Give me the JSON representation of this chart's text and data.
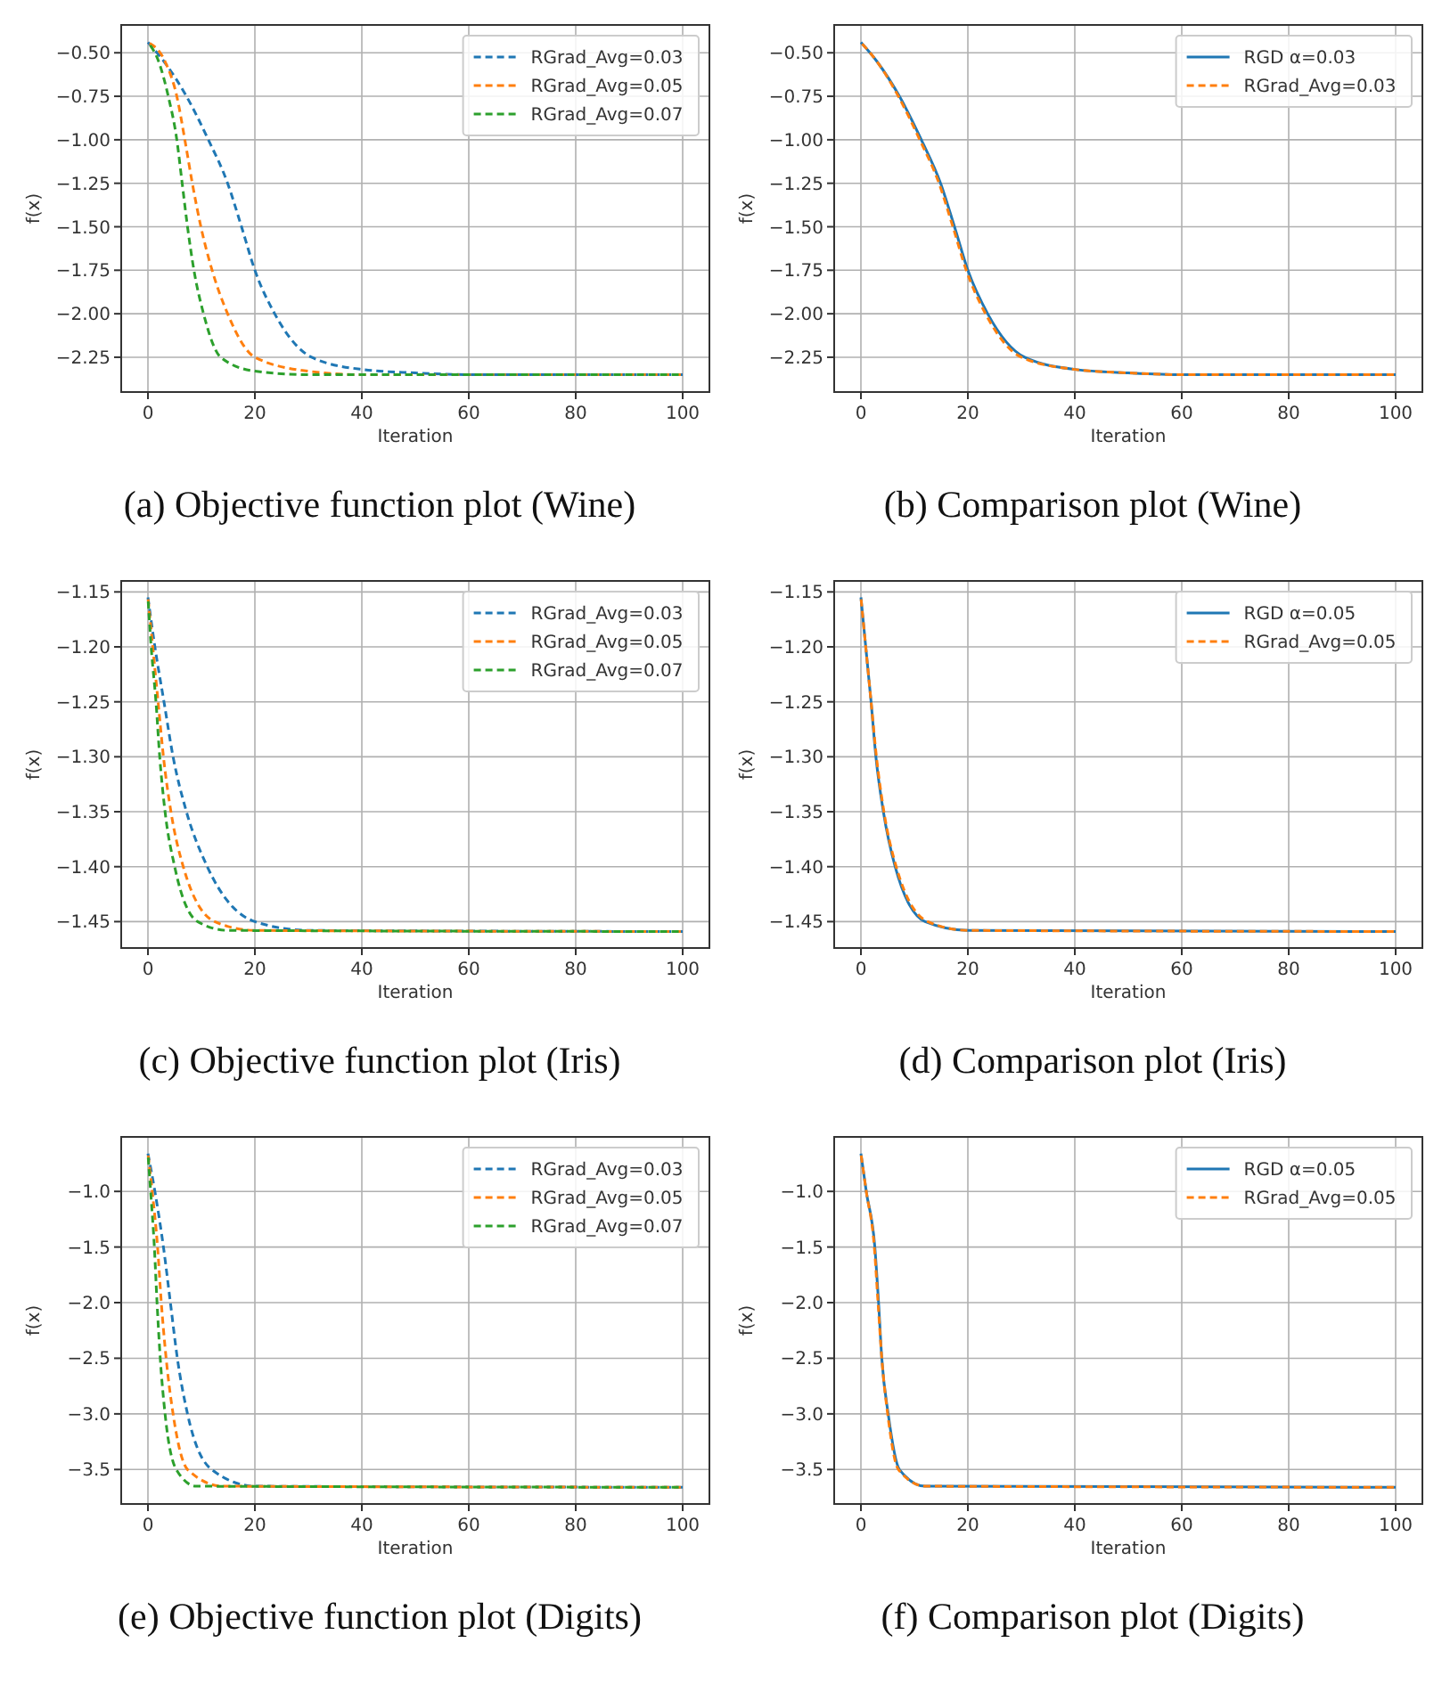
{
  "chart_data": [
    {
      "type": "line",
      "title": "(a) Objective function plot (Wine)",
      "xlabel": "Iteration",
      "ylabel": "f(x)",
      "xlim": [
        -5,
        105
      ],
      "ylim": [
        -2.45,
        -0.34
      ],
      "xticks": [
        0,
        20,
        40,
        60,
        80,
        100
      ],
      "yticks": [
        {
          "value": -0.5,
          "label": "−0.50"
        },
        {
          "value": -0.75,
          "label": "−0.75"
        },
        {
          "value": -1.0,
          "label": "−1.00"
        },
        {
          "value": -1.25,
          "label": "−1.25"
        },
        {
          "value": -1.5,
          "label": "−1.50"
        },
        {
          "value": -1.75,
          "label": "−1.75"
        },
        {
          "value": -2.0,
          "label": "−2.00"
        },
        {
          "value": -2.25,
          "label": "−2.25"
        }
      ],
      "grid": true,
      "legend": "top right",
      "series": [
        {
          "name": "RGrad_Avg=0.03",
          "color": "#1f77b4",
          "line_style": "dashed",
          "x": [
            0,
            3,
            7.2,
            11.3,
            14.9,
            17.5,
            20,
            23.7,
            30.6,
            40,
            50,
            60,
            100
          ],
          "values": [
            -0.44,
            -0.55,
            -0.75,
            -1.0,
            -1.25,
            -1.5,
            -1.75,
            -2.0,
            -2.25,
            -2.32,
            -2.34,
            -2.35,
            -2.35
          ]
        },
        {
          "name": "RGrad_Avg=0.05",
          "color": "#ff7f0e",
          "line_style": "dashed",
          "x": [
            0,
            3.2,
            5.4,
            6.9,
            8.3,
            9.9,
            12,
            14.9,
            20,
            30,
            40,
            100
          ],
          "values": [
            -0.44,
            -0.55,
            -0.75,
            -1.0,
            -1.25,
            -1.5,
            -1.75,
            -2.0,
            -2.25,
            -2.33,
            -2.35,
            -2.35
          ]
        },
        {
          "name": "RGrad_Avg=0.07",
          "color": "#2ca02c",
          "line_style": "dashed",
          "x": [
            0,
            2,
            3.8,
            5.4,
            6.4,
            7.4,
            8.6,
            10.4,
            13.6,
            20,
            30,
            100
          ],
          "values": [
            -0.44,
            -0.55,
            -0.75,
            -1.0,
            -1.25,
            -1.5,
            -1.75,
            -2.0,
            -2.25,
            -2.33,
            -2.35,
            -2.35
          ]
        }
      ]
    },
    {
      "type": "line",
      "title": "(b) Comparison plot (Wine)",
      "xlabel": "Iteration",
      "ylabel": "f(x)",
      "xlim": [
        -5,
        105
      ],
      "ylim": [
        -2.45,
        -0.34
      ],
      "xticks": [
        0,
        20,
        40,
        60,
        80,
        100
      ],
      "yticks": [
        {
          "value": -0.5,
          "label": "−0.50"
        },
        {
          "value": -0.75,
          "label": "−0.75"
        },
        {
          "value": -1.0,
          "label": "−1.00"
        },
        {
          "value": -1.25,
          "label": "−1.25"
        },
        {
          "value": -1.5,
          "label": "−1.50"
        },
        {
          "value": -1.75,
          "label": "−1.75"
        },
        {
          "value": -2.0,
          "label": "−2.00"
        },
        {
          "value": -2.25,
          "label": "−2.25"
        }
      ],
      "grid": true,
      "legend": "top right",
      "series": [
        {
          "name": "RGD α=0.03",
          "color": "#1f77b4",
          "line_style": "solid",
          "x": [
            0,
            3,
            7.2,
            11.3,
            14.9,
            17.5,
            20,
            23.7,
            30.6,
            40,
            50,
            60,
            100
          ],
          "values": [
            -0.44,
            -0.55,
            -0.75,
            -1.0,
            -1.25,
            -1.5,
            -1.75,
            -2.0,
            -2.25,
            -2.32,
            -2.34,
            -2.35,
            -2.35
          ]
        },
        {
          "name": "RGrad_Avg=0.03",
          "color": "#ff7f0e",
          "line_style": "dashed",
          "x": [
            0,
            3,
            7,
            11,
            14.6,
            17.2,
            19.7,
            23.3,
            30,
            40,
            50,
            60,
            100
          ],
          "values": [
            -0.44,
            -0.55,
            -0.75,
            -1.0,
            -1.25,
            -1.5,
            -1.75,
            -2.0,
            -2.25,
            -2.32,
            -2.34,
            -2.35,
            -2.35
          ]
        }
      ]
    },
    {
      "type": "line",
      "title": "(c) Objective function plot (Iris)",
      "xlabel": "Iteration",
      "ylabel": "f(x)",
      "xlim": [
        -5,
        105
      ],
      "ylim": [
        -1.474,
        -1.14
      ],
      "xticks": [
        0,
        20,
        40,
        60,
        80,
        100
      ],
      "yticks": [
        {
          "value": -1.15,
          "label": "−1.15"
        },
        {
          "value": -1.2,
          "label": "−1.20"
        },
        {
          "value": -1.25,
          "label": "−1.25"
        },
        {
          "value": -1.3,
          "label": "−1.30"
        },
        {
          "value": -1.35,
          "label": "−1.35"
        },
        {
          "value": -1.4,
          "label": "−1.40"
        },
        {
          "value": -1.45,
          "label": "−1.45"
        }
      ],
      "grid": true,
      "legend": "top right",
      "series": [
        {
          "name": "RGrad_Avg=0.03",
          "color": "#1f77b4",
          "line_style": "dashed",
          "x": [
            0,
            1.3,
            3,
            4.7,
            7.2,
            11.1,
            20,
            30,
            100
          ],
          "values": [
            -1.155,
            -1.2,
            -1.25,
            -1.3,
            -1.35,
            -1.4,
            -1.45,
            -1.458,
            -1.459
          ]
        },
        {
          "name": "RGrad_Avg=0.05",
          "color": "#ff7f0e",
          "line_style": "dashed",
          "x": [
            0,
            0.9,
            1.9,
            2.9,
            4.3,
            6.6,
            12.5,
            20,
            100
          ],
          "values": [
            -1.155,
            -1.2,
            -1.25,
            -1.3,
            -1.35,
            -1.4,
            -1.45,
            -1.458,
            -1.459
          ]
        },
        {
          "name": "RGrad_Avg=0.07",
          "color": "#2ca02c",
          "line_style": "dashed",
          "x": [
            0,
            0.6,
            1.5,
            2.2,
            3.2,
            5,
            9.3,
            15,
            100
          ],
          "values": [
            -1.155,
            -1.2,
            -1.25,
            -1.3,
            -1.35,
            -1.4,
            -1.45,
            -1.458,
            -1.459
          ]
        }
      ]
    },
    {
      "type": "line",
      "title": "(d) Comparison plot (Iris)",
      "xlabel": "Iteration",
      "ylabel": "f(x)",
      "xlim": [
        -5,
        105
      ],
      "ylim": [
        -1.474,
        -1.14
      ],
      "xticks": [
        0,
        20,
        40,
        60,
        80,
        100
      ],
      "yticks": [
        {
          "value": -1.15,
          "label": "−1.15"
        },
        {
          "value": -1.2,
          "label": "−1.20"
        },
        {
          "value": -1.25,
          "label": "−1.25"
        },
        {
          "value": -1.3,
          "label": "−1.30"
        },
        {
          "value": -1.35,
          "label": "−1.35"
        },
        {
          "value": -1.4,
          "label": "−1.40"
        },
        {
          "value": -1.45,
          "label": "−1.45"
        }
      ],
      "grid": true,
      "legend": "top right",
      "series": [
        {
          "name": "RGD α=0.05",
          "color": "#1f77b4",
          "line_style": "solid",
          "x": [
            0,
            0.9,
            1.9,
            2.8,
            4.2,
            6.4,
            12,
            20,
            100
          ],
          "values": [
            -1.155,
            -1.2,
            -1.25,
            -1.3,
            -1.35,
            -1.4,
            -1.45,
            -1.458,
            -1.459
          ]
        },
        {
          "name": "RGrad_Avg=0.05",
          "color": "#ff7f0e",
          "line_style": "dashed",
          "x": [
            0,
            0.9,
            1.9,
            2.9,
            4.3,
            6.6,
            12.5,
            20,
            100
          ],
          "values": [
            -1.155,
            -1.2,
            -1.25,
            -1.3,
            -1.35,
            -1.4,
            -1.45,
            -1.458,
            -1.459
          ]
        }
      ]
    },
    {
      "type": "line",
      "title": "(e) Objective function plot (Digits)",
      "xlabel": "Iteration",
      "ylabel": "f(x)",
      "xlim": [
        -5,
        105
      ],
      "ylim": [
        -3.81,
        -0.51
      ],
      "xticks": [
        0,
        20,
        40,
        60,
        80,
        100
      ],
      "yticks": [
        {
          "value": -1.0,
          "label": "−1.0"
        },
        {
          "value": -1.5,
          "label": "−1.5"
        },
        {
          "value": -2.0,
          "label": "−2.0"
        },
        {
          "value": -2.5,
          "label": "−2.5"
        },
        {
          "value": -3.0,
          "label": "−3.0"
        },
        {
          "value": -3.5,
          "label": "−3.5"
        }
      ],
      "grid": true,
      "legend": "top right",
      "series": [
        {
          "name": "RGrad_Avg=0.03",
          "color": "#1f77b4",
          "line_style": "dashed",
          "x": [
            0,
            1.3,
            2.9,
            4.2,
            5.5,
            7.4,
            11.9,
            20,
            100
          ],
          "values": [
            -0.66,
            -1.0,
            -1.5,
            -2.0,
            -2.5,
            -3.0,
            -3.5,
            -3.65,
            -3.66
          ]
        },
        {
          "name": "RGrad_Avg=0.05",
          "color": "#ff7f0e",
          "line_style": "dashed",
          "x": [
            0,
            0.8,
            1.8,
            2.5,
            3.4,
            4.7,
            7.4,
            14,
            100
          ],
          "values": [
            -0.66,
            -1.0,
            -1.5,
            -2.0,
            -2.5,
            -3.0,
            -3.5,
            -3.65,
            -3.66
          ]
        },
        {
          "name": "RGrad_Avg=0.07",
          "color": "#2ca02c",
          "line_style": "dashed",
          "x": [
            0,
            0.5,
            1.2,
            1.7,
            2.3,
            3.2,
            5.3,
            9,
            100
          ],
          "values": [
            -0.66,
            -1.0,
            -1.5,
            -2.0,
            -2.5,
            -3.0,
            -3.5,
            -3.65,
            -3.66
          ]
        }
      ]
    },
    {
      "type": "line",
      "title": "(f) Comparison plot (Digits)",
      "xlabel": "Iteration",
      "ylabel": "f(x)",
      "xlim": [
        -5,
        105
      ],
      "ylim": [
        -3.81,
        -0.51
      ],
      "xticks": [
        0,
        20,
        40,
        60,
        80,
        100
      ],
      "yticks": [
        {
          "value": -1.0,
          "label": "−1.0"
        },
        {
          "value": -1.5,
          "label": "−1.5"
        },
        {
          "value": -2.0,
          "label": "−2.0"
        },
        {
          "value": -2.5,
          "label": "−2.5"
        },
        {
          "value": -3.0,
          "label": "−3.0"
        },
        {
          "value": -3.5,
          "label": "−3.5"
        }
      ],
      "grid": true,
      "legend": "top right",
      "series": [
        {
          "name": "RGD α=0.05",
          "color": "#1f77b4",
          "line_style": "solid",
          "x": [
            0,
            1,
            2.6,
            3.3,
            3.9,
            5.1,
            7.2,
            12,
            100
          ],
          "values": [
            -0.66,
            -1.0,
            -1.5,
            -2.0,
            -2.5,
            -3.0,
            -3.5,
            -3.65,
            -3.66
          ]
        },
        {
          "name": "RGrad_Avg=0.05",
          "color": "#ff7f0e",
          "line_style": "dashed",
          "x": [
            0,
            1,
            2.5,
            3.2,
            3.9,
            5,
            7,
            12,
            100
          ],
          "values": [
            -0.66,
            -1.0,
            -1.5,
            -2.0,
            -2.5,
            -3.0,
            -3.5,
            -3.65,
            -3.66
          ]
        }
      ]
    }
  ]
}
